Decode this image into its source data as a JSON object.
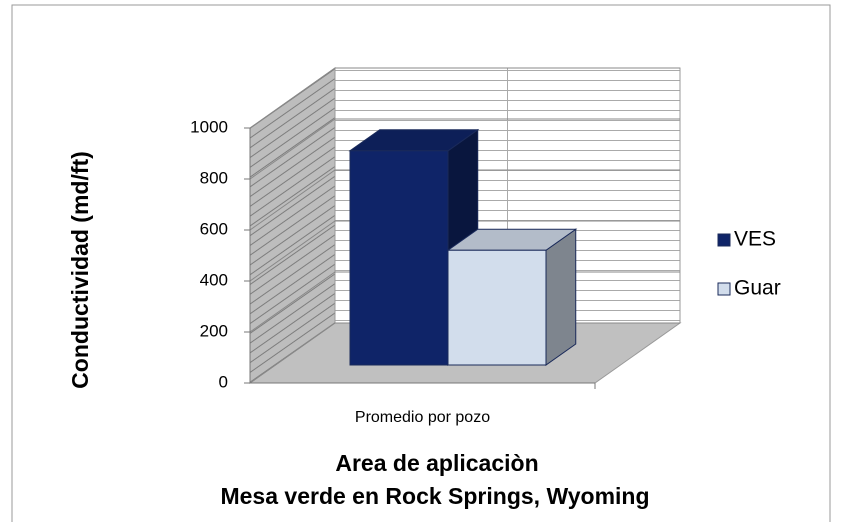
{
  "chart_data": {
    "type": "bar3d",
    "categories": [
      "Promedio por pozo"
    ],
    "series": [
      {
        "name": "VES",
        "color": "#0f2468",
        "values": [
          840
        ]
      },
      {
        "name": "Guar",
        "color": "#d2ddec",
        "values": [
          450
        ]
      }
    ],
    "ylim": [
      0,
      1000
    ],
    "yticks": [
      0,
      200,
      400,
      600,
      800,
      1000
    ],
    "y_label": "Conductividad  (md/ft)",
    "x_label": "Area de aplicaciòn",
    "subtitle": "Mesa verde en Rock Springs, Wyoming",
    "grid": true,
    "legend": "right"
  }
}
